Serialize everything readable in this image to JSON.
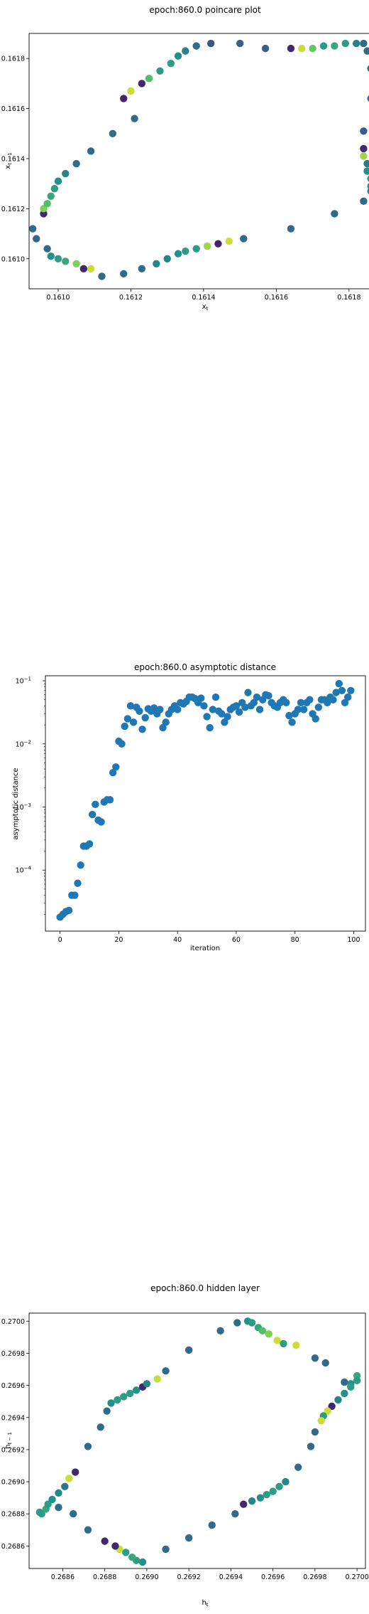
{
  "chart_data": [
    {
      "type": "scatter",
      "title": "epoch:860.0 poincare plot",
      "xlabel": "x_t",
      "ylabel": "x_{t-1}",
      "xlim": [
        0.16092,
        0.16189
      ],
      "ylim": [
        0.16088,
        0.1619
      ],
      "xticks": [
        {
          "value": 0.161,
          "label": "0.1610"
        },
        {
          "value": 0.1612,
          "label": "0.1612"
        },
        {
          "value": 0.1614,
          "label": "0.1614"
        },
        {
          "value": 0.1616,
          "label": "0.1616"
        },
        {
          "value": 0.1618,
          "label": "0.1618"
        }
      ],
      "yticks": [
        {
          "value": 0.161,
          "label": "0.1610"
        },
        {
          "value": 0.1612,
          "label": "0.1612"
        },
        {
          "value": 0.1614,
          "label": "0.1614"
        },
        {
          "value": 0.1616,
          "label": "0.1616"
        },
        {
          "value": 0.1618,
          "label": "0.1618"
        }
      ],
      "colormap": [
        "#440154",
        "#3b528b",
        "#21918c",
        "#5ec962",
        "#fde725"
      ],
      "points": [
        [
          0.16142,
          0.16186,
          0.25
        ],
        [
          0.1615,
          0.16186,
          0.3
        ],
        [
          0.16157,
          0.16184,
          0.3
        ],
        [
          0.16164,
          0.16184,
          0.12
        ],
        [
          0.16167,
          0.16184,
          0.92
        ],
        [
          0.1617,
          0.16184,
          0.75
        ],
        [
          0.16173,
          0.16185,
          0.55
        ],
        [
          0.16176,
          0.16185,
          0.6
        ],
        [
          0.16179,
          0.16186,
          0.55
        ],
        [
          0.16182,
          0.16186,
          0.45
        ],
        [
          0.16184,
          0.16186,
          0.35
        ],
        [
          0.16185,
          0.16183,
          0.35
        ],
        [
          0.16186,
          0.16176,
          0.35
        ],
        [
          0.16186,
          0.16164,
          0.35
        ],
        [
          0.16184,
          0.16151,
          0.3
        ],
        [
          0.16184,
          0.16144,
          0.12
        ],
        [
          0.16184,
          0.16141,
          0.85
        ],
        [
          0.16185,
          0.16138,
          0.4
        ],
        [
          0.16185,
          0.16135,
          0.5
        ],
        [
          0.16186,
          0.16132,
          0.55
        ],
        [
          0.16186,
          0.16129,
          0.5
        ],
        [
          0.16186,
          0.16127,
          0.45
        ],
        [
          0.16184,
          0.16123,
          0.35
        ],
        [
          0.16176,
          0.16118,
          0.35
        ],
        [
          0.16164,
          0.16112,
          0.35
        ],
        [
          0.16151,
          0.16108,
          0.35
        ],
        [
          0.16147,
          0.16107,
          0.92
        ],
        [
          0.16144,
          0.16106,
          0.12
        ],
        [
          0.16141,
          0.16105,
          0.85
        ],
        [
          0.16138,
          0.16104,
          0.55
        ],
        [
          0.16135,
          0.16103,
          0.55
        ],
        [
          0.16133,
          0.16102,
          0.5
        ],
        [
          0.1613,
          0.161,
          0.45
        ],
        [
          0.16127,
          0.16098,
          0.45
        ],
        [
          0.16123,
          0.16096,
          0.35
        ],
        [
          0.16118,
          0.16094,
          0.35
        ],
        [
          0.16112,
          0.16093,
          0.35
        ],
        [
          0.16109,
          0.16096,
          0.92
        ],
        [
          0.16107,
          0.16096,
          0.12
        ],
        [
          0.16105,
          0.16098,
          0.8
        ],
        [
          0.16102,
          0.16099,
          0.6
        ],
        [
          0.161,
          0.161,
          0.55
        ],
        [
          0.16098,
          0.16101,
          0.5
        ],
        [
          0.16097,
          0.16104,
          0.35
        ],
        [
          0.16094,
          0.16108,
          0.35
        ],
        [
          0.16093,
          0.16112,
          0.35
        ],
        [
          0.16096,
          0.16118,
          0.12
        ],
        [
          0.16096,
          0.1612,
          0.8
        ],
        [
          0.16097,
          0.16122,
          0.7
        ],
        [
          0.16098,
          0.16125,
          0.6
        ],
        [
          0.16099,
          0.16128,
          0.55
        ],
        [
          0.161,
          0.16131,
          0.5
        ],
        [
          0.16102,
          0.16134,
          0.45
        ],
        [
          0.16105,
          0.16138,
          0.35
        ],
        [
          0.16109,
          0.16143,
          0.35
        ],
        [
          0.16115,
          0.1615,
          0.35
        ],
        [
          0.16121,
          0.16156,
          0.35
        ],
        [
          0.16118,
          0.16164,
          0.12
        ],
        [
          0.1612,
          0.16167,
          0.92
        ],
        [
          0.16123,
          0.1617,
          0.12
        ],
        [
          0.16125,
          0.16172,
          0.7
        ],
        [
          0.16128,
          0.16175,
          0.55
        ],
        [
          0.16131,
          0.16178,
          0.55
        ],
        [
          0.16133,
          0.16181,
          0.5
        ],
        [
          0.16135,
          0.16183,
          0.45
        ],
        [
          0.16138,
          0.16185,
          0.35
        ]
      ]
    },
    {
      "type": "scatter",
      "title": "epoch:860.0 asymptotic distance",
      "xlabel": "iteration",
      "ylabel": "asymptotic distance",
      "yscale": "log",
      "xlim": [
        -5,
        104
      ],
      "ylim": [
        1.08e-05,
        0.12
      ],
      "xticks": [
        {
          "value": 0,
          "label": "0"
        },
        {
          "value": 20,
          "label": "20"
        },
        {
          "value": 40,
          "label": "40"
        },
        {
          "value": 60,
          "label": "60"
        },
        {
          "value": 80,
          "label": "80"
        },
        {
          "value": 100,
          "label": "100"
        }
      ],
      "yticks": [
        {
          "value": 0.0001,
          "label": "10",
          "exp": "−4"
        },
        {
          "value": 0.001,
          "label": "10",
          "exp": "−3"
        },
        {
          "value": 0.01,
          "label": "10",
          "exp": "−2"
        },
        {
          "value": 0.1,
          "label": "10",
          "exp": "−1"
        }
      ],
      "color": "#1f77b4",
      "x": [
        0,
        1,
        2,
        3,
        4,
        5,
        6,
        7,
        8,
        9,
        10,
        11,
        12,
        13,
        14,
        15,
        16,
        17,
        18,
        19,
        20,
        21,
        22,
        23,
        24,
        25,
        26,
        27,
        28,
        29,
        30,
        31,
        32,
        33,
        34,
        35,
        36,
        37,
        38,
        39,
        40,
        41,
        42,
        43,
        44,
        45,
        46,
        47,
        48,
        49,
        50,
        51,
        52,
        53,
        54,
        55,
        56,
        57,
        58,
        59,
        60,
        61,
        62,
        63,
        64,
        65,
        66,
        67,
        68,
        69,
        70,
        71,
        72,
        73,
        74,
        75,
        76,
        77,
        78,
        79,
        80,
        81,
        82,
        83,
        84,
        85,
        86,
        87,
        88,
        89,
        90,
        91,
        92,
        93,
        94,
        95,
        96,
        97,
        98,
        99
      ],
      "y": [
        1.8e-05,
        2e-05,
        2.2e-05,
        2.3e-05,
        4e-05,
        4e-05,
        6.2e-05,
        0.00012,
        0.00024,
        0.00024,
        0.00026,
        0.00076,
        0.0011,
        0.00062,
        0.00058,
        0.0012,
        0.0013,
        0.0013,
        0.0035,
        0.0043,
        0.011,
        0.01,
        0.019,
        0.025,
        0.04,
        0.022,
        0.038,
        0.033,
        0.017,
        0.026,
        0.036,
        0.033,
        0.037,
        0.03,
        0.035,
        0.018,
        0.022,
        0.03,
        0.035,
        0.04,
        0.035,
        0.045,
        0.043,
        0.047,
        0.055,
        0.055,
        0.052,
        0.045,
        0.053,
        0.04,
        0.027,
        0.018,
        0.035,
        0.055,
        0.033,
        0.03,
        0.022,
        0.027,
        0.035,
        0.038,
        0.04,
        0.032,
        0.045,
        0.038,
        0.065,
        0.04,
        0.045,
        0.055,
        0.035,
        0.05,
        0.06,
        0.058,
        0.045,
        0.04,
        0.038,
        0.045,
        0.05,
        0.045,
        0.028,
        0.022,
        0.03,
        0.035,
        0.045,
        0.035,
        0.045,
        0.05,
        0.03,
        0.025,
        0.038,
        0.05,
        0.05,
        0.045,
        0.055,
        0.05,
        0.065,
        0.09,
        0.07,
        0.045,
        0.055,
        0.07
      ]
    },
    {
      "type": "scatter",
      "title": "epoch:860.0 hidden layer",
      "xlabel": "h_t",
      "ylabel": "h_{t-1}",
      "xlim": [
        0.26844,
        0.27004
      ],
      "ylim": [
        0.26846,
        0.27005
      ],
      "xticks": [
        {
          "value": 0.2686,
          "label": "0.2686"
        },
        {
          "value": 0.2688,
          "label": "0.2688"
        },
        {
          "value": 0.269,
          "label": "0.2690"
        },
        {
          "value": 0.2692,
          "label": "0.2692"
        },
        {
          "value": 0.2694,
          "label": "0.2694"
        },
        {
          "value": 0.2696,
          "label": "0.2696"
        },
        {
          "value": 0.2698,
          "label": "0.2698"
        },
        {
          "value": 0.27,
          "label": "0.2700"
        }
      ],
      "yticks": [
        {
          "value": 0.2686,
          "label": "0.2686"
        },
        {
          "value": 0.2688,
          "label": "0.2688"
        },
        {
          "value": 0.269,
          "label": "0.2690"
        },
        {
          "value": 0.2692,
          "label": "0.2692"
        },
        {
          "value": 0.2694,
          "label": "0.2694"
        },
        {
          "value": 0.2696,
          "label": "0.2696"
        },
        {
          "value": 0.2698,
          "label": "0.2698"
        },
        {
          "value": 0.27,
          "label": "0.2700"
        }
      ],
      "colormap": [
        "#440154",
        "#3b528b",
        "#21918c",
        "#5ec962",
        "#fde725"
      ],
      "points": [
        [
          0.2685,
          0.2688,
          0.55
        ],
        [
          0.26852,
          0.26883,
          0.6
        ],
        [
          0.26853,
          0.26886,
          0.55
        ],
        [
          0.26855,
          0.26889,
          0.5
        ],
        [
          0.26858,
          0.26893,
          0.45
        ],
        [
          0.26861,
          0.26897,
          0.4
        ],
        [
          0.26863,
          0.26902,
          0.92
        ],
        [
          0.26866,
          0.26906,
          0.12
        ],
        [
          0.26872,
          0.26922,
          0.35
        ],
        [
          0.26878,
          0.26934,
          0.35
        ],
        [
          0.26881,
          0.26944,
          0.35
        ],
        [
          0.26883,
          0.26949,
          0.5
        ],
        [
          0.26886,
          0.26951,
          0.55
        ],
        [
          0.26889,
          0.26953,
          0.55
        ],
        [
          0.26892,
          0.26955,
          0.55
        ],
        [
          0.26895,
          0.26957,
          0.5
        ],
        [
          0.26898,
          0.26959,
          0.12
        ],
        [
          0.269,
          0.26961,
          0.45
        ],
        [
          0.26905,
          0.26964,
          0.92
        ],
        [
          0.26909,
          0.26969,
          0.35
        ],
        [
          0.2692,
          0.26982,
          0.35
        ],
        [
          0.26935,
          0.26994,
          0.35
        ],
        [
          0.26943,
          0.26999,
          0.35
        ],
        [
          0.26948,
          0.27,
          0.5
        ],
        [
          0.2695,
          0.26999,
          0.55
        ],
        [
          0.26953,
          0.26996,
          0.6
        ],
        [
          0.26955,
          0.26994,
          0.7
        ],
        [
          0.26958,
          0.26992,
          0.8
        ],
        [
          0.26962,
          0.26988,
          0.92
        ],
        [
          0.26965,
          0.26986,
          0.55
        ],
        [
          0.26971,
          0.26985,
          0.92
        ],
        [
          0.2698,
          0.26977,
          0.35
        ],
        [
          0.26985,
          0.26974,
          0.35
        ],
        [
          0.26994,
          0.26962,
          0.35
        ],
        [
          0.26997,
          0.26961,
          0.5
        ],
        [
          0.27,
          0.26966,
          0.6
        ],
        [
          0.27,
          0.26963,
          0.55
        ],
        [
          0.26997,
          0.26959,
          0.55
        ],
        [
          0.26994,
          0.26955,
          0.5
        ],
        [
          0.26991,
          0.26951,
          0.45
        ],
        [
          0.26988,
          0.26947,
          0.12
        ],
        [
          0.26986,
          0.26944,
          0.92
        ],
        [
          0.26984,
          0.26941,
          0.55
        ],
        [
          0.26983,
          0.26938,
          0.92
        ],
        [
          0.2698,
          0.26931,
          0.35
        ],
        [
          0.26978,
          0.26922,
          0.35
        ],
        [
          0.26972,
          0.26909,
          0.35
        ],
        [
          0.26966,
          0.269,
          0.45
        ],
        [
          0.26963,
          0.26897,
          0.55
        ],
        [
          0.2696,
          0.26894,
          0.55
        ],
        [
          0.26957,
          0.26892,
          0.55
        ],
        [
          0.26954,
          0.2689,
          0.5
        ],
        [
          0.2695,
          0.26888,
          0.45
        ],
        [
          0.26946,
          0.26886,
          0.12
        ],
        [
          0.26942,
          0.2688,
          0.35
        ],
        [
          0.26931,
          0.26873,
          0.35
        ],
        [
          0.2692,
          0.26865,
          0.35
        ],
        [
          0.26909,
          0.26858,
          0.35
        ],
        [
          0.26898,
          0.2685,
          0.5
        ],
        [
          0.26895,
          0.26851,
          0.55
        ],
        [
          0.26893,
          0.26853,
          0.6
        ],
        [
          0.2689,
          0.26856,
          0.55
        ],
        [
          0.26887,
          0.26858,
          0.92
        ],
        [
          0.26885,
          0.2686,
          0.12
        ],
        [
          0.2688,
          0.26863,
          0.12
        ],
        [
          0.26872,
          0.2687,
          0.35
        ],
        [
          0.26865,
          0.2688,
          0.35
        ],
        [
          0.26858,
          0.26884,
          0.35
        ],
        [
          0.26849,
          0.26881,
          0.55
        ]
      ]
    }
  ]
}
